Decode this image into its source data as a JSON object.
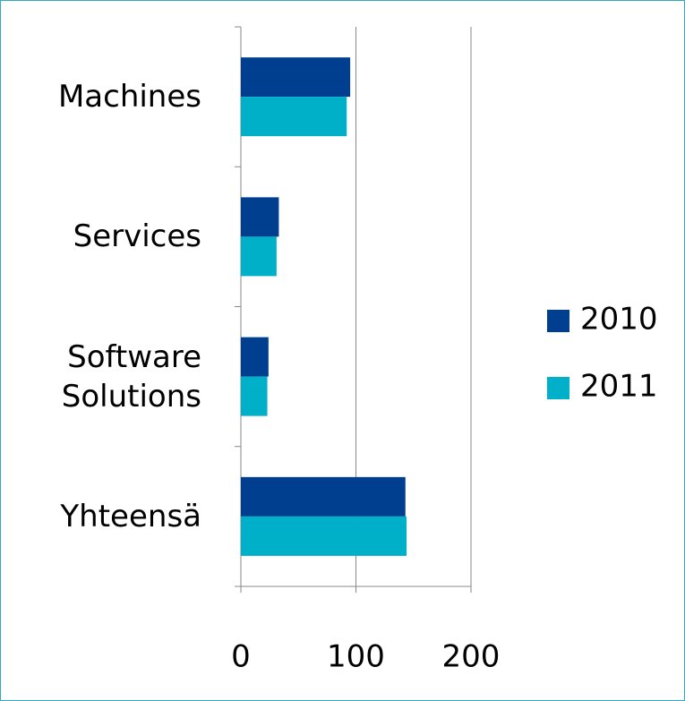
{
  "chart_data": {
    "type": "bar",
    "orientation": "horizontal",
    "categories": [
      "Machines",
      "Services",
      "Software Solutions",
      "Yhteensä"
    ],
    "series": [
      {
        "name": "2010",
        "color": "#003f8f",
        "values": [
          95,
          33,
          24,
          143
        ]
      },
      {
        "name": "2011",
        "color": "#00b0c8",
        "values": [
          92,
          31,
          23,
          144
        ]
      }
    ],
    "xlim": [
      0,
      200
    ],
    "xticks": [
      0,
      100,
      200
    ],
    "grid": true,
    "legend": "right"
  }
}
